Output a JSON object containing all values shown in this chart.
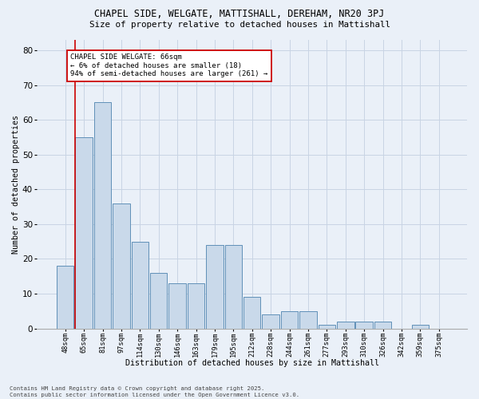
{
  "title1": "CHAPEL SIDE, WELGATE, MATTISHALL, DEREHAM, NR20 3PJ",
  "title2": "Size of property relative to detached houses in Mattishall",
  "xlabel": "Distribution of detached houses by size in Mattishall",
  "ylabel": "Number of detached properties",
  "categories": [
    "48sqm",
    "65sqm",
    "81sqm",
    "97sqm",
    "114sqm",
    "130sqm",
    "146sqm",
    "163sqm",
    "179sqm",
    "195sqm",
    "212sqm",
    "228sqm",
    "244sqm",
    "261sqm",
    "277sqm",
    "293sqm",
    "310sqm",
    "326sqm",
    "342sqm",
    "359sqm",
    "375sqm"
  ],
  "values": [
    18,
    55,
    65,
    36,
    25,
    16,
    13,
    13,
    24,
    24,
    9,
    4,
    5,
    5,
    1,
    2,
    2,
    2,
    0,
    1,
    0
  ],
  "bar_color": "#c9d9ea",
  "bar_edge_color": "#6090b8",
  "background_color": "#eaf0f8",
  "grid_color": "#c8d4e4",
  "vline_color": "#cc0000",
  "annotation_text": "CHAPEL SIDE WELGATE: 66sqm\n← 6% of detached houses are smaller (18)\n94% of semi-detached houses are larger (261) →",
  "annotation_box_color": "#ffffff",
  "annotation_box_edge": "#cc0000",
  "footer": "Contains HM Land Registry data © Crown copyright and database right 2025.\nContains public sector information licensed under the Open Government Licence v3.0.",
  "ylim_max": 83,
  "yticks": [
    0,
    10,
    20,
    30,
    40,
    50,
    60,
    70,
    80
  ]
}
